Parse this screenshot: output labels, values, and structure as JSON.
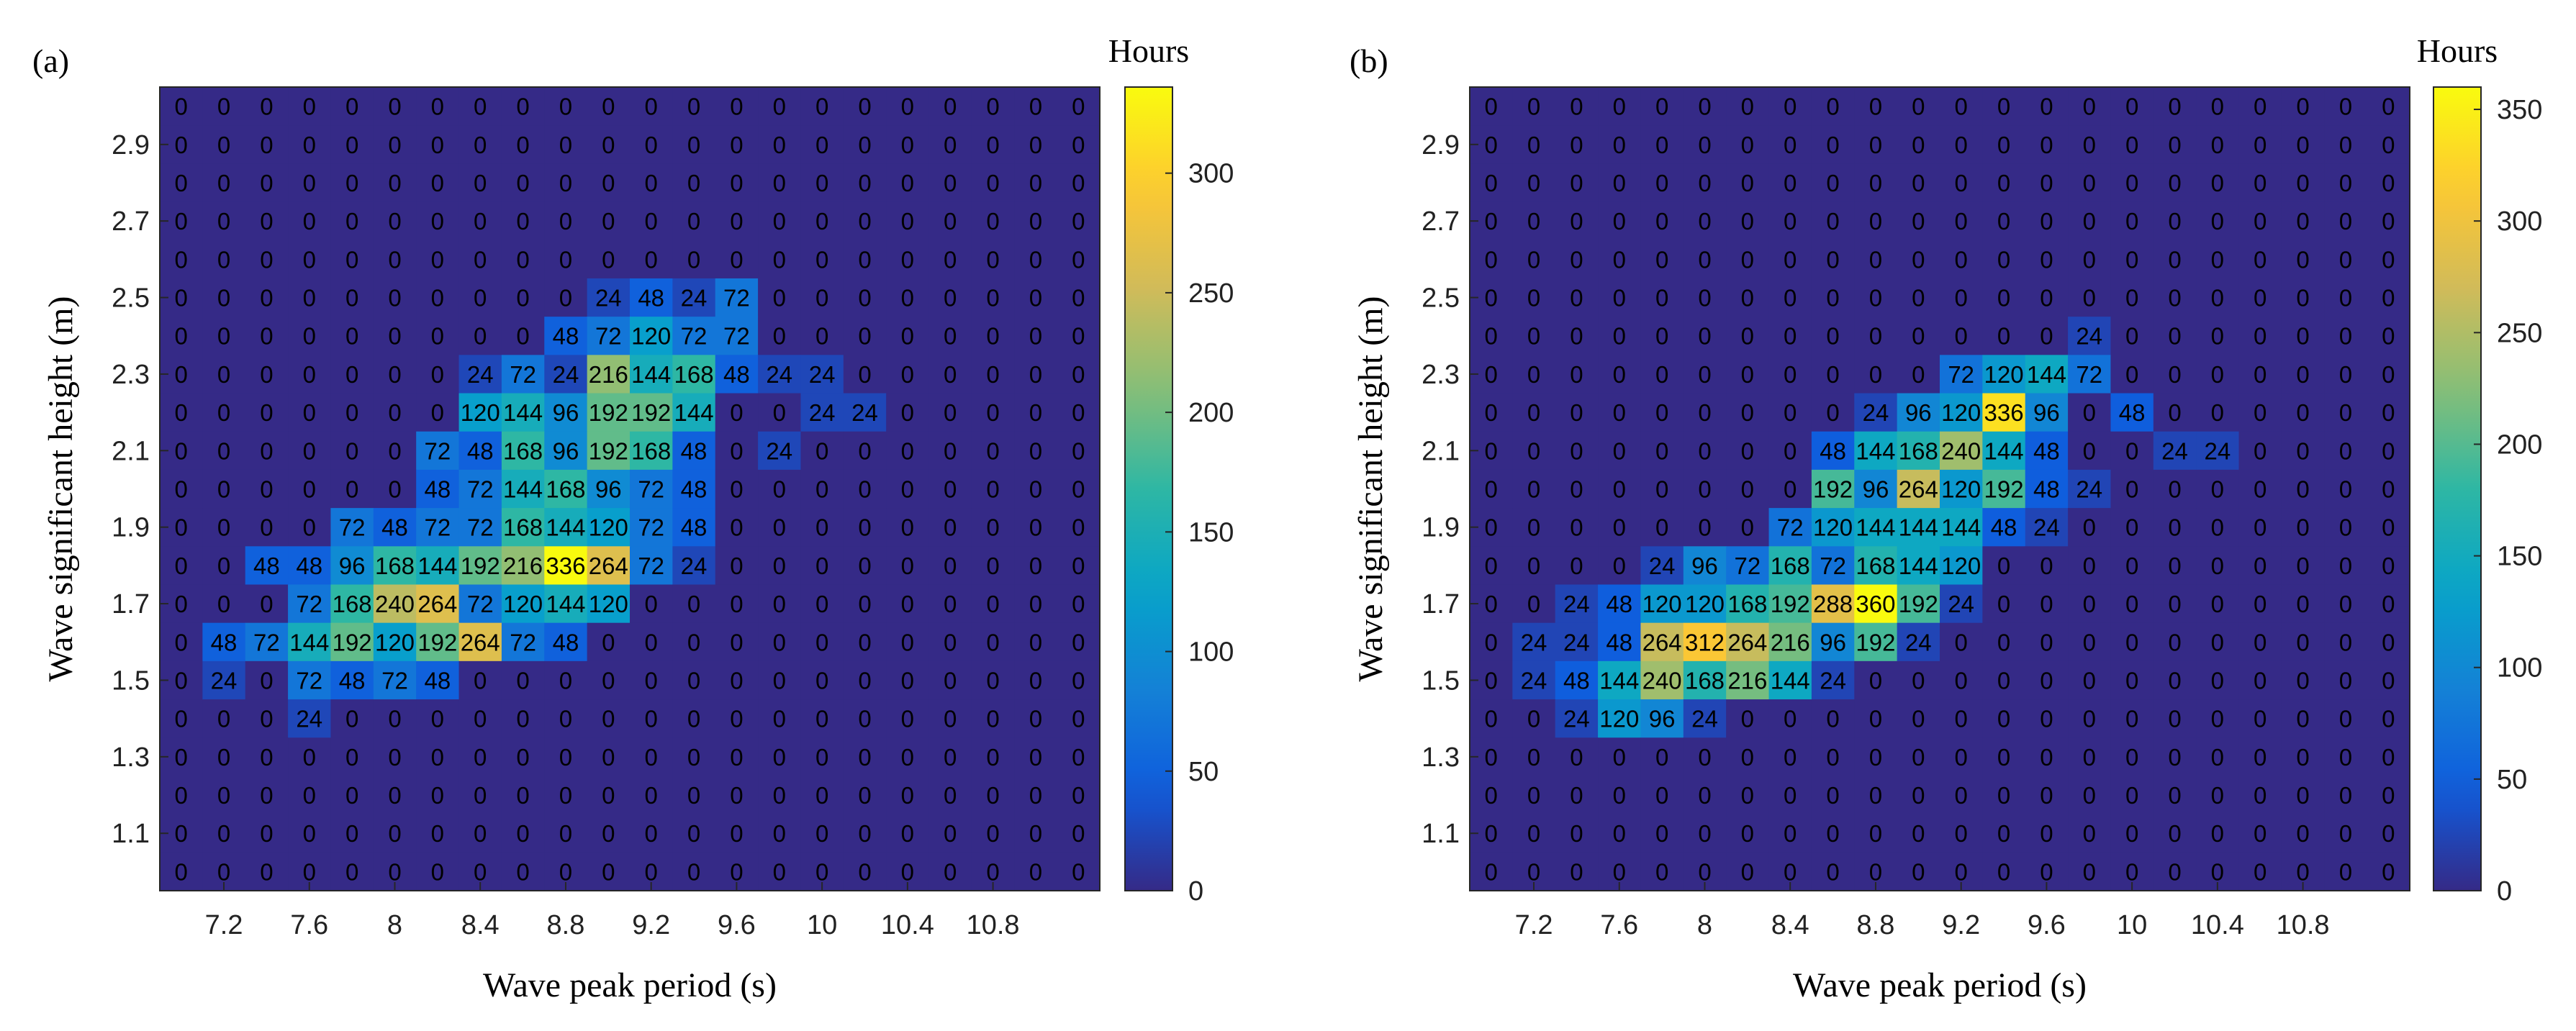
{
  "chart_data": [
    {
      "type": "heatmap",
      "panel": "(a)",
      "xlabel": "Wave peak period (s)",
      "ylabel": "Wave significant height (m)",
      "colorbar_label": "Hours",
      "colorbar_ticks": [
        "0",
        "50",
        "100",
        "150",
        "200",
        "250",
        "300"
      ],
      "color_range": [
        0,
        336
      ],
      "x_tick_labels": [
        "7.2",
        "7.6",
        "8",
        "8.4",
        "8.8",
        "9.2",
        "9.6",
        "10",
        "10.4",
        "10.8"
      ],
      "y_tick_labels": [
        "2.9",
        "2.7",
        "2.5",
        "2.3",
        "2.1",
        "1.9",
        "1.7",
        "1.5",
        "1.3",
        "1.1"
      ],
      "rows_top_to_bottom": [
        [
          0,
          0,
          0,
          0,
          0,
          0,
          0,
          0,
          0,
          0,
          0,
          0,
          0,
          0,
          0,
          0,
          0,
          0,
          0,
          0,
          0,
          0
        ],
        [
          0,
          0,
          0,
          0,
          0,
          0,
          0,
          0,
          0,
          0,
          0,
          0,
          0,
          0,
          0,
          0,
          0,
          0,
          0,
          0,
          0,
          0
        ],
        [
          0,
          0,
          0,
          0,
          0,
          0,
          0,
          0,
          0,
          0,
          0,
          0,
          0,
          0,
          0,
          0,
          0,
          0,
          0,
          0,
          0,
          0
        ],
        [
          0,
          0,
          0,
          0,
          0,
          0,
          0,
          0,
          0,
          0,
          0,
          0,
          0,
          0,
          0,
          0,
          0,
          0,
          0,
          0,
          0,
          0
        ],
        [
          0,
          0,
          0,
          0,
          0,
          0,
          0,
          0,
          0,
          0,
          0,
          0,
          0,
          0,
          0,
          0,
          0,
          0,
          0,
          0,
          0,
          0
        ],
        [
          0,
          0,
          0,
          0,
          0,
          0,
          0,
          0,
          0,
          0,
          24,
          48,
          24,
          72,
          0,
          0,
          0,
          0,
          0,
          0,
          0,
          0
        ],
        [
          0,
          0,
          0,
          0,
          0,
          0,
          0,
          0,
          0,
          48,
          72,
          120,
          72,
          72,
          0,
          0,
          0,
          0,
          0,
          0,
          0,
          0
        ],
        [
          0,
          0,
          0,
          0,
          0,
          0,
          0,
          24,
          72,
          24,
          216,
          144,
          168,
          48,
          24,
          24,
          0,
          0,
          0,
          0,
          0,
          0
        ],
        [
          0,
          0,
          0,
          0,
          0,
          0,
          0,
          120,
          144,
          96,
          192,
          192,
          144,
          0,
          0,
          24,
          24,
          0,
          0,
          0,
          0,
          0
        ],
        [
          0,
          0,
          0,
          0,
          0,
          0,
          72,
          48,
          168,
          96,
          192,
          168,
          48,
          0,
          24,
          0,
          0,
          0,
          0,
          0,
          0,
          0
        ],
        [
          0,
          0,
          0,
          0,
          0,
          0,
          48,
          72,
          144,
          168,
          96,
          72,
          48,
          0,
          0,
          0,
          0,
          0,
          0,
          0,
          0,
          0
        ],
        [
          0,
          0,
          0,
          0,
          72,
          48,
          72,
          72,
          168,
          144,
          120,
          72,
          48,
          0,
          0,
          0,
          0,
          0,
          0,
          0,
          0,
          0
        ],
        [
          0,
          0,
          48,
          48,
          96,
          168,
          144,
          192,
          216,
          336,
          264,
          72,
          24,
          0,
          0,
          0,
          0,
          0,
          0,
          0,
          0,
          0
        ],
        [
          0,
          0,
          0,
          72,
          168,
          240,
          264,
          72,
          120,
          144,
          120,
          0,
          0,
          0,
          0,
          0,
          0,
          0,
          0,
          0,
          0,
          0
        ],
        [
          0,
          48,
          72,
          144,
          192,
          120,
          192,
          264,
          72,
          48,
          0,
          0,
          0,
          0,
          0,
          0,
          0,
          0,
          0,
          0,
          0,
          0
        ],
        [
          0,
          24,
          0,
          72,
          48,
          72,
          48,
          0,
          0,
          0,
          0,
          0,
          0,
          0,
          0,
          0,
          0,
          0,
          0,
          0,
          0,
          0
        ],
        [
          0,
          0,
          0,
          24,
          0,
          0,
          0,
          0,
          0,
          0,
          0,
          0,
          0,
          0,
          0,
          0,
          0,
          0,
          0,
          0,
          0,
          0
        ],
        [
          0,
          0,
          0,
          0,
          0,
          0,
          0,
          0,
          0,
          0,
          0,
          0,
          0,
          0,
          0,
          0,
          0,
          0,
          0,
          0,
          0,
          0
        ],
        [
          0,
          0,
          0,
          0,
          0,
          0,
          0,
          0,
          0,
          0,
          0,
          0,
          0,
          0,
          0,
          0,
          0,
          0,
          0,
          0,
          0,
          0
        ],
        [
          0,
          0,
          0,
          0,
          0,
          0,
          0,
          0,
          0,
          0,
          0,
          0,
          0,
          0,
          0,
          0,
          0,
          0,
          0,
          0,
          0,
          0
        ],
        [
          0,
          0,
          0,
          0,
          0,
          0,
          0,
          0,
          0,
          0,
          0,
          0,
          0,
          0,
          0,
          0,
          0,
          0,
          0,
          0,
          0,
          0
        ]
      ]
    },
    {
      "type": "heatmap",
      "panel": "(b)",
      "xlabel": "Wave peak period (s)",
      "ylabel": "Wave significant height (m)",
      "colorbar_label": "Hours",
      "colorbar_ticks": [
        "0",
        "50",
        "100",
        "150",
        "200",
        "250",
        "300",
        "350"
      ],
      "color_range": [
        0,
        360
      ],
      "x_tick_labels": [
        "7.2",
        "7.6",
        "8",
        "8.4",
        "8.8",
        "9.2",
        "9.6",
        "10",
        "10.4",
        "10.8"
      ],
      "y_tick_labels": [
        "2.9",
        "2.7",
        "2.5",
        "2.3",
        "2.1",
        "1.9",
        "1.7",
        "1.5",
        "1.3",
        "1.1"
      ],
      "rows_top_to_bottom": [
        [
          0,
          0,
          0,
          0,
          0,
          0,
          0,
          0,
          0,
          0,
          0,
          0,
          0,
          0,
          0,
          0,
          0,
          0,
          0,
          0,
          0,
          0
        ],
        [
          0,
          0,
          0,
          0,
          0,
          0,
          0,
          0,
          0,
          0,
          0,
          0,
          0,
          0,
          0,
          0,
          0,
          0,
          0,
          0,
          0,
          0
        ],
        [
          0,
          0,
          0,
          0,
          0,
          0,
          0,
          0,
          0,
          0,
          0,
          0,
          0,
          0,
          0,
          0,
          0,
          0,
          0,
          0,
          0,
          0
        ],
        [
          0,
          0,
          0,
          0,
          0,
          0,
          0,
          0,
          0,
          0,
          0,
          0,
          0,
          0,
          0,
          0,
          0,
          0,
          0,
          0,
          0,
          0
        ],
        [
          0,
          0,
          0,
          0,
          0,
          0,
          0,
          0,
          0,
          0,
          0,
          0,
          0,
          0,
          0,
          0,
          0,
          0,
          0,
          0,
          0,
          0
        ],
        [
          0,
          0,
          0,
          0,
          0,
          0,
          0,
          0,
          0,
          0,
          0,
          0,
          0,
          0,
          0,
          0,
          0,
          0,
          0,
          0,
          0,
          0
        ],
        [
          0,
          0,
          0,
          0,
          0,
          0,
          0,
          0,
          0,
          0,
          0,
          0,
          0,
          0,
          24,
          0,
          0,
          0,
          0,
          0,
          0,
          0
        ],
        [
          0,
          0,
          0,
          0,
          0,
          0,
          0,
          0,
          0,
          0,
          0,
          72,
          120,
          144,
          72,
          0,
          0,
          0,
          0,
          0,
          0,
          0
        ],
        [
          0,
          0,
          0,
          0,
          0,
          0,
          0,
          0,
          0,
          24,
          96,
          120,
          336,
          96,
          0,
          48,
          0,
          0,
          0,
          0,
          0,
          0
        ],
        [
          0,
          0,
          0,
          0,
          0,
          0,
          0,
          0,
          48,
          144,
          168,
          240,
          144,
          48,
          0,
          0,
          24,
          24,
          0,
          0,
          0,
          0
        ],
        [
          0,
          0,
          0,
          0,
          0,
          0,
          0,
          0,
          192,
          96,
          264,
          120,
          192,
          48,
          24,
          0,
          0,
          0,
          0,
          0,
          0,
          0
        ],
        [
          0,
          0,
          0,
          0,
          0,
          0,
          0,
          72,
          120,
          144,
          144,
          144,
          48,
          24,
          0,
          0,
          0,
          0,
          0,
          0,
          0,
          0
        ],
        [
          0,
          0,
          0,
          0,
          24,
          96,
          72,
          168,
          72,
          168,
          144,
          120,
          0,
          0,
          0,
          0,
          0,
          0,
          0,
          0,
          0,
          0
        ],
        [
          0,
          0,
          24,
          48,
          120,
          120,
          168,
          192,
          288,
          360,
          192,
          24,
          0,
          0,
          0,
          0,
          0,
          0,
          0,
          0,
          0,
          0
        ],
        [
          0,
          24,
          24,
          48,
          264,
          312,
          264,
          216,
          96,
          192,
          24,
          0,
          0,
          0,
          0,
          0,
          0,
          0,
          0,
          0,
          0,
          0
        ],
        [
          0,
          24,
          48,
          144,
          240,
          168,
          216,
          144,
          24,
          0,
          0,
          0,
          0,
          0,
          0,
          0,
          0,
          0,
          0,
          0,
          0,
          0
        ],
        [
          0,
          0,
          24,
          120,
          96,
          24,
          0,
          0,
          0,
          0,
          0,
          0,
          0,
          0,
          0,
          0,
          0,
          0,
          0,
          0,
          0,
          0
        ],
        [
          0,
          0,
          0,
          0,
          0,
          0,
          0,
          0,
          0,
          0,
          0,
          0,
          0,
          0,
          0,
          0,
          0,
          0,
          0,
          0,
          0,
          0
        ],
        [
          0,
          0,
          0,
          0,
          0,
          0,
          0,
          0,
          0,
          0,
          0,
          0,
          0,
          0,
          0,
          0,
          0,
          0,
          0,
          0,
          0,
          0
        ],
        [
          0,
          0,
          0,
          0,
          0,
          0,
          0,
          0,
          0,
          0,
          0,
          0,
          0,
          0,
          0,
          0,
          0,
          0,
          0,
          0,
          0,
          0
        ],
        [
          0,
          0,
          0,
          0,
          0,
          0,
          0,
          0,
          0,
          0,
          0,
          0,
          0,
          0,
          0,
          0,
          0,
          0,
          0,
          0,
          0,
          0
        ]
      ]
    }
  ],
  "colormap": {
    "name": "parula",
    "stops": [
      "#352a87",
      "#0f5cdd",
      "#1481d6",
      "#06a4ca",
      "#2eb7a4",
      "#87bf77",
      "#d1bb59",
      "#fec832",
      "#f9fb0e"
    ]
  }
}
